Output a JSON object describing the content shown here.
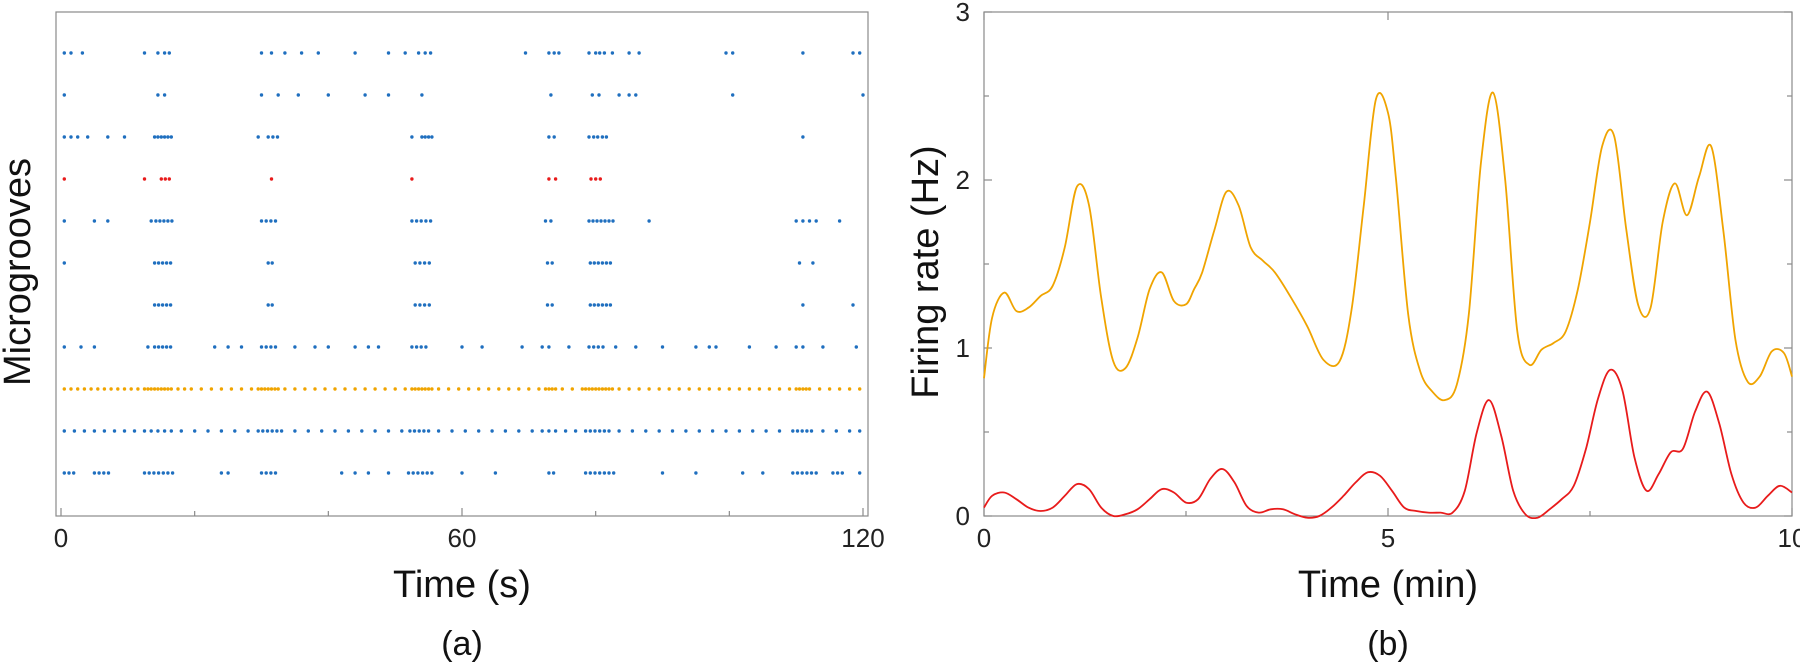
{
  "chart_data": [
    {
      "id": "a",
      "type": "scatter",
      "subtype": "raster",
      "panel_label": "(a)",
      "xlabel": "Time (s)",
      "ylabel": "Microgrooves",
      "xlim": [
        0,
        120
      ],
      "xticks": [
        0,
        60,
        120
      ],
      "grid": false,
      "series": [
        {
          "color": "#1f6fbf",
          "x": [
            0.5,
            1.5,
            3.2,
            12.5,
            14.5,
            15.5,
            16.2,
            30.0,
            31.5,
            33.5,
            36.0,
            38.5,
            44.0,
            49.0,
            51.5,
            53.5,
            54.5,
            55.3,
            69.5,
            73.0,
            73.8,
            74.5,
            79.0,
            80.0,
            80.6,
            81.3,
            82.5,
            85.0,
            86.5,
            99.5,
            100.5,
            111.0,
            118.5,
            119.5
          ]
        },
        {
          "color": "#1f6fbf",
          "x": [
            0.5,
            14.5,
            15.5,
            30.0,
            32.5,
            35.5,
            40.0,
            45.5,
            49.0,
            54.0,
            73.3,
            79.5,
            80.5,
            83.5,
            85.0,
            86.0,
            100.5,
            120.0
          ]
        },
        {
          "color": "#1f6fbf",
          "x": [
            0.5,
            1.5,
            2.5,
            4.0,
            7.0,
            9.5,
            14.0,
            14.5,
            15.0,
            15.5,
            16.0,
            16.5,
            29.5,
            31.0,
            31.7,
            32.4,
            52.5,
            54.0,
            54.5,
            55.0,
            55.5,
            73.0,
            73.8,
            79.0,
            79.7,
            80.3,
            81.0,
            81.6,
            111.0
          ]
        },
        {
          "color": "#e81b1b",
          "x": [
            0.5,
            12.5,
            15.0,
            15.6,
            16.2,
            31.5,
            52.5,
            73.0,
            74.0,
            79.3,
            80.0,
            80.7
          ]
        },
        {
          "color": "#1f6fbf",
          "x": [
            0.5,
            5.0,
            7.0,
            13.5,
            14.2,
            14.8,
            15.4,
            16.0,
            16.6,
            30.0,
            30.7,
            31.4,
            32.1,
            52.5,
            53.2,
            53.9,
            54.6,
            55.3,
            72.5,
            73.3,
            79.0,
            79.6,
            80.2,
            80.8,
            81.4,
            82.0,
            82.6,
            88.0,
            110.0,
            111.0,
            112.0,
            113.0,
            116.5
          ]
        },
        {
          "color": "#1f6fbf",
          "x": [
            0.5,
            14.0,
            14.6,
            15.2,
            15.8,
            16.4,
            31.0,
            31.6,
            53.0,
            53.7,
            54.4,
            55.1,
            72.8,
            73.5,
            79.2,
            79.8,
            80.4,
            81.0,
            81.6,
            82.2,
            110.5,
            112.5
          ]
        },
        {
          "color": "#1f6fbf",
          "x": [
            14.0,
            14.6,
            15.2,
            15.8,
            16.4,
            31.0,
            31.6,
            53.0,
            53.7,
            54.4,
            55.1,
            72.8,
            73.5,
            79.2,
            79.8,
            80.4,
            81.0,
            81.6,
            82.2,
            111.0,
            118.5
          ]
        },
        {
          "color": "#1f6fbf",
          "x": [
            0.5,
            3.0,
            5.0,
            13.0,
            14.0,
            14.6,
            15.2,
            15.8,
            16.4,
            23.0,
            25.0,
            27.0,
            30.0,
            30.7,
            31.4,
            32.1,
            35.0,
            38.0,
            40.0,
            44.0,
            46.0,
            47.5,
            52.5,
            53.2,
            53.9,
            54.6,
            60.0,
            63.0,
            69.0,
            72.0,
            73.0,
            76.0,
            79.0,
            79.7,
            80.4,
            81.1,
            83.0,
            86.0,
            90.0,
            95.0,
            97.0,
            98.0,
            103.0,
            107.0,
            110.0,
            111.0,
            114.0,
            119.0
          ]
        },
        {
          "color": "#f0a400",
          "x": [
            0.5,
            1.5,
            2.5,
            3.5,
            4.5,
            5.5,
            6.5,
            7.5,
            8.5,
            9.5,
            10.5,
            11.5,
            12.5,
            13.0,
            13.5,
            14.0,
            14.5,
            15.0,
            15.5,
            16.0,
            16.5,
            17.5,
            18.5,
            19.5,
            21.0,
            22.5,
            24.0,
            25.5,
            27.0,
            28.5,
            29.5,
            30.0,
            30.5,
            31.0,
            31.5,
            32.0,
            32.5,
            33.5,
            35.0,
            36.5,
            38.0,
            39.5,
            41.0,
            42.5,
            44.0,
            45.5,
            47.0,
            48.5,
            50.0,
            51.5,
            52.5,
            53.0,
            53.5,
            54.0,
            54.5,
            55.0,
            55.5,
            56.5,
            58.0,
            59.5,
            61.0,
            62.5,
            64.0,
            65.5,
            67.0,
            68.5,
            70.0,
            71.5,
            72.5,
            73.0,
            73.5,
            74.0,
            75.0,
            76.5,
            78.0,
            78.5,
            79.0,
            79.5,
            80.0,
            80.5,
            81.0,
            81.5,
            82.0,
            82.5,
            83.5,
            85.0,
            86.5,
            88.0,
            89.5,
            91.0,
            92.5,
            94.0,
            95.5,
            97.0,
            98.5,
            100.0,
            101.5,
            103.0,
            104.5,
            106.0,
            107.5,
            109.0,
            110.0,
            110.5,
            111.0,
            111.5,
            112.0,
            113.5,
            115.0,
            116.5,
            118.0,
            119.5
          ]
        },
        {
          "color": "#1f6fbf",
          "x": [
            0.5,
            2.0,
            3.5,
            5.0,
            6.5,
            8.0,
            9.5,
            11.0,
            12.5,
            13.5,
            14.5,
            15.5,
            16.5,
            18.0,
            20.0,
            22.0,
            24.0,
            26.0,
            28.0,
            29.5,
            30.2,
            30.9,
            31.6,
            32.3,
            33.0,
            35.0,
            37.0,
            39.0,
            41.0,
            43.0,
            45.0,
            47.0,
            49.0,
            51.0,
            52.2,
            52.9,
            53.6,
            54.3,
            55.0,
            56.5,
            58.5,
            60.5,
            62.5,
            64.5,
            66.5,
            68.5,
            70.5,
            72.0,
            73.0,
            74.0,
            75.5,
            77.0,
            78.5,
            79.2,
            79.9,
            80.6,
            81.3,
            82.0,
            83.5,
            85.5,
            87.5,
            89.5,
            91.5,
            93.5,
            95.5,
            97.5,
            99.5,
            101.5,
            103.5,
            105.5,
            107.5,
            109.5,
            110.2,
            110.9,
            111.6,
            112.3,
            114.0,
            116.0,
            118.0,
            119.5
          ]
        },
        {
          "color": "#1f6fbf",
          "x": [
            0.5,
            1.2,
            1.9,
            5.0,
            5.7,
            6.4,
            7.1,
            12.5,
            13.2,
            13.9,
            14.6,
            15.3,
            16.0,
            16.7,
            24.0,
            25.0,
            30.0,
            30.7,
            31.4,
            32.1,
            42.0,
            44.0,
            46.0,
            49.0,
            52.0,
            52.7,
            53.4,
            54.1,
            54.8,
            55.5,
            60.0,
            65.0,
            73.0,
            73.7,
            78.5,
            79.2,
            79.9,
            80.6,
            81.3,
            82.0,
            82.7,
            90.0,
            95.0,
            102.0,
            105.0,
            109.5,
            110.2,
            110.9,
            111.6,
            112.3,
            113.0,
            115.5,
            116.2,
            116.9,
            119.5
          ]
        }
      ]
    },
    {
      "id": "b",
      "type": "line",
      "panel_label": "(b)",
      "xlabel": "Time (min)",
      "ylabel": "Firing rate (Hz)",
      "xlim": [
        0,
        10
      ],
      "ylim": [
        0,
        3
      ],
      "xticks": [
        0,
        5,
        10
      ],
      "yticks": [
        0,
        1,
        2,
        3
      ],
      "grid": false,
      "series": [
        {
          "color": "#f0a400",
          "x": [
            0,
            0.1,
            0.25,
            0.4,
            0.55,
            0.7,
            0.85,
            1.0,
            1.15,
            1.3,
            1.45,
            1.6,
            1.75,
            1.9,
            2.05,
            2.2,
            2.35,
            2.5,
            2.6,
            2.7,
            2.85,
            3.0,
            3.15,
            3.3,
            3.45,
            3.6,
            3.8,
            4.0,
            4.2,
            4.4,
            4.55,
            4.7,
            4.85,
            5.0,
            5.1,
            5.25,
            5.4,
            5.55,
            5.7,
            5.85,
            6.0,
            6.15,
            6.3,
            6.45,
            6.6,
            6.75,
            6.9,
            7.05,
            7.2,
            7.35,
            7.5,
            7.65,
            7.8,
            7.95,
            8.1,
            8.25,
            8.4,
            8.55,
            8.7,
            8.85,
            9.0,
            9.15,
            9.3,
            9.45,
            9.6,
            9.75,
            9.9,
            10.0
          ],
          "y": [
            0.82,
            1.18,
            1.33,
            1.22,
            1.24,
            1.31,
            1.37,
            1.6,
            1.96,
            1.85,
            1.3,
            0.92,
            0.88,
            1.06,
            1.35,
            1.45,
            1.28,
            1.26,
            1.35,
            1.45,
            1.7,
            1.93,
            1.85,
            1.6,
            1.52,
            1.45,
            1.3,
            1.13,
            0.93,
            0.92,
            1.23,
            1.85,
            2.48,
            2.4,
            2.0,
            1.2,
            0.86,
            0.74,
            0.69,
            0.78,
            1.2,
            2.1,
            2.52,
            2.0,
            1.1,
            0.9,
            0.99,
            1.03,
            1.1,
            1.35,
            1.75,
            2.2,
            2.26,
            1.7,
            1.25,
            1.24,
            1.75,
            1.98,
            1.79,
            2.02,
            2.2,
            1.7,
            1.05,
            0.8,
            0.83,
            0.98,
            0.97,
            0.83
          ]
        },
        {
          "color": "#e81b1b",
          "x": [
            0,
            0.1,
            0.25,
            0.4,
            0.55,
            0.7,
            0.85,
            1.0,
            1.15,
            1.3,
            1.45,
            1.6,
            1.75,
            1.9,
            2.05,
            2.2,
            2.35,
            2.5,
            2.65,
            2.8,
            2.95,
            3.1,
            3.25,
            3.4,
            3.55,
            3.7,
            3.85,
            4.0,
            4.15,
            4.3,
            4.45,
            4.6,
            4.75,
            4.9,
            5.05,
            5.2,
            5.35,
            5.5,
            5.65,
            5.8,
            5.95,
            6.1,
            6.25,
            6.4,
            6.55,
            6.7,
            6.85,
            7.0,
            7.15,
            7.3,
            7.45,
            7.6,
            7.75,
            7.9,
            8.05,
            8.2,
            8.35,
            8.5,
            8.65,
            8.8,
            8.95,
            9.1,
            9.25,
            9.4,
            9.55,
            9.7,
            9.85,
            10.0
          ],
          "y": [
            0.05,
            0.12,
            0.14,
            0.1,
            0.05,
            0.03,
            0.05,
            0.12,
            0.19,
            0.16,
            0.05,
            0.0,
            0.01,
            0.04,
            0.1,
            0.16,
            0.14,
            0.08,
            0.1,
            0.22,
            0.28,
            0.2,
            0.06,
            0.02,
            0.04,
            0.04,
            0.01,
            -0.01,
            0.0,
            0.05,
            0.12,
            0.2,
            0.26,
            0.24,
            0.15,
            0.05,
            0.03,
            0.02,
            0.02,
            0.02,
            0.15,
            0.5,
            0.69,
            0.48,
            0.15,
            0.01,
            -0.01,
            0.04,
            0.1,
            0.18,
            0.4,
            0.7,
            0.87,
            0.75,
            0.35,
            0.15,
            0.25,
            0.38,
            0.4,
            0.62,
            0.74,
            0.55,
            0.25,
            0.08,
            0.05,
            0.12,
            0.18,
            0.14
          ]
        }
      ]
    }
  ]
}
